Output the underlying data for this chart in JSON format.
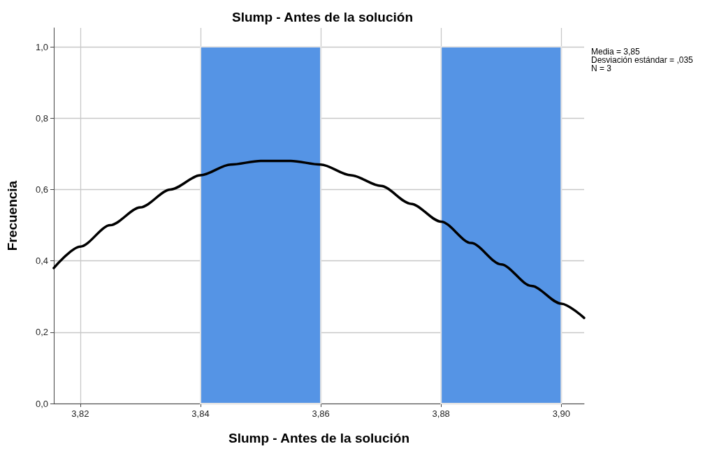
{
  "chart_data": {
    "type": "histogram",
    "title": "Slump - Antes de la solución",
    "xlabel": "Slump - Antes de la solución",
    "ylabel": "Frecuencia",
    "bins": [
      3.84,
      3.86,
      3.88,
      3.9
    ],
    "values": [
      1,
      0,
      1
    ],
    "color": "#5594e5",
    "series": [
      {
        "type": "line",
        "color": "#000000",
        "x": [
          3.8156,
          3.82,
          3.825,
          3.83,
          3.835,
          3.84,
          3.845,
          3.85,
          3.8527,
          3.855,
          3.86,
          3.865,
          3.87,
          3.875,
          3.88,
          3.885,
          3.89,
          3.895,
          3.9,
          3.9038
        ],
        "values": [
          0.38,
          0.44,
          0.5,
          0.55,
          0.6,
          0.64,
          0.67,
          0.68,
          0.68,
          0.68,
          0.67,
          0.64,
          0.61,
          0.56,
          0.51,
          0.45,
          0.39,
          0.33,
          0.28,
          0.24
        ]
      }
    ],
    "xlim": [
      3.8156,
      3.9038
    ],
    "xticks": [
      {
        "value": 3.82,
        "label": "3,82"
      },
      {
        "value": 3.84,
        "label": "3,84"
      },
      {
        "value": 3.86,
        "label": "3,86"
      },
      {
        "value": 3.88,
        "label": "3,88"
      },
      {
        "value": 3.9,
        "label": "3,90"
      }
    ],
    "ylim": [
      0,
      1.053
    ],
    "yticks": [
      {
        "value": 0,
        "label": "0,0"
      },
      {
        "value": 0.2,
        "label": "0,2"
      },
      {
        "value": 0.4,
        "label": "0,4"
      },
      {
        "value": 0.6,
        "label": "0,6"
      },
      {
        "value": 0.8,
        "label": "0,8"
      },
      {
        "value": 1.0,
        "label": "1,0"
      }
    ],
    "grid": true,
    "annotations": [
      "Media = 3,85",
      "Desviación estándar = ,035",
      "N = 3"
    ]
  }
}
